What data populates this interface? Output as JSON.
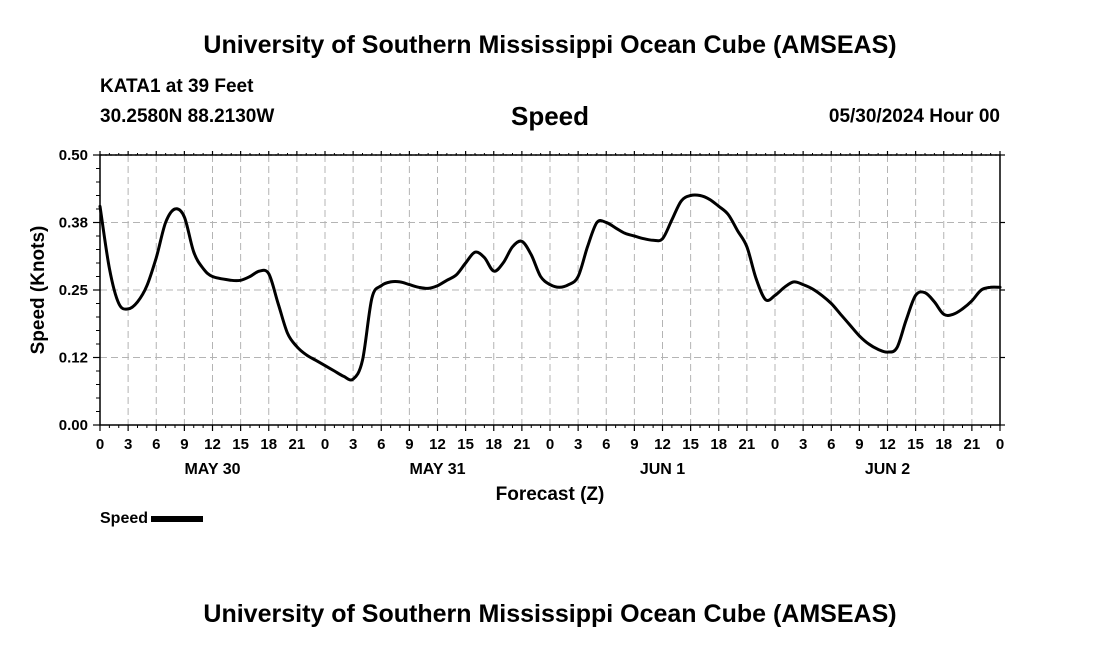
{
  "page": {
    "title": "University of Southern Mississippi Ocean Cube (AMSEAS)",
    "footer_title": "University of Southern Mississippi Ocean Cube (AMSEAS)",
    "station": "KATA1 at 39 Feet",
    "coords": "30.2580N  88.2130W",
    "chart_name": "Speed",
    "date_hour": "05/30/2024 Hour 00"
  },
  "legend": {
    "label": "Speed"
  },
  "chart_data": {
    "type": "line",
    "title": "Speed",
    "xlabel": "Forecast (Z)",
    "ylabel": "Speed (Knots)",
    "ylim": [
      0,
      0.5
    ],
    "xlim": [
      0,
      96
    ],
    "y_ticks": [
      0,
      0.125,
      0.25,
      0.375,
      0.5
    ],
    "y_tick_labels": [
      "0.00",
      "0.12",
      "0.25",
      "0.38",
      "0.50"
    ],
    "x_tick_labels": [
      "0",
      "3",
      "6",
      "9",
      "12",
      "15",
      "18",
      "21",
      "0",
      "3",
      "6",
      "9",
      "12",
      "15",
      "18",
      "21",
      "0",
      "3",
      "6",
      "9",
      "12",
      "15",
      "18",
      "21",
      "0",
      "3",
      "6",
      "9",
      "12",
      "15",
      "18",
      "21",
      "0"
    ],
    "day_labels": [
      {
        "label": "MAY 30",
        "hour": 12
      },
      {
        "label": "MAY 31",
        "hour": 36
      },
      {
        "label": "JUN 1",
        "hour": 60
      },
      {
        "label": "JUN 2",
        "hour": 84
      }
    ],
    "grid": true,
    "series": [
      {
        "name": "Speed",
        "color": "#000000",
        "x": [
          0,
          1,
          2,
          3,
          4,
          5,
          6,
          7,
          8,
          9,
          10,
          11,
          12,
          14,
          15,
          16,
          17,
          18,
          19,
          20,
          21,
          22,
          23,
          24,
          25,
          26,
          27,
          28,
          29,
          30,
          31,
          32,
          33,
          34,
          35,
          36,
          37,
          38,
          39,
          40,
          41,
          42,
          43,
          44,
          45,
          46,
          47,
          48,
          49,
          50,
          51,
          52,
          53,
          54,
          55,
          56,
          57,
          58,
          59,
          60,
          61,
          62,
          63,
          64,
          65,
          66,
          67,
          68,
          69,
          70,
          71,
          72,
          73,
          74,
          75,
          76,
          77,
          78,
          79,
          80,
          81,
          82,
          83,
          84,
          85,
          86,
          87,
          88,
          89,
          90,
          91,
          92,
          93,
          94,
          95,
          96
        ],
        "values": [
          0.405,
          0.29,
          0.225,
          0.215,
          0.228,
          0.258,
          0.31,
          0.375,
          0.4,
          0.385,
          0.32,
          0.29,
          0.275,
          0.268,
          0.268,
          0.275,
          0.285,
          0.28,
          0.225,
          0.17,
          0.145,
          0.13,
          0.12,
          0.11,
          0.1,
          0.09,
          0.085,
          0.12,
          0.235,
          0.258,
          0.265,
          0.265,
          0.26,
          0.255,
          0.253,
          0.258,
          0.268,
          0.278,
          0.3,
          0.32,
          0.31,
          0.285,
          0.3,
          0.33,
          0.34,
          0.315,
          0.275,
          0.26,
          0.255,
          0.26,
          0.275,
          0.33,
          0.375,
          0.375,
          0.365,
          0.355,
          0.35,
          0.345,
          0.342,
          0.345,
          0.38,
          0.415,
          0.425,
          0.425,
          0.418,
          0.405,
          0.39,
          0.36,
          0.33,
          0.27,
          0.232,
          0.24,
          0.255,
          0.265,
          0.26,
          0.252,
          0.24,
          0.225,
          0.205,
          0.185,
          0.165,
          0.15,
          0.14,
          0.135,
          0.143,
          0.195,
          0.24,
          0.245,
          0.228,
          0.205,
          0.205,
          0.215,
          0.23,
          0.25,
          0.255,
          0.255
        ]
      }
    ]
  }
}
